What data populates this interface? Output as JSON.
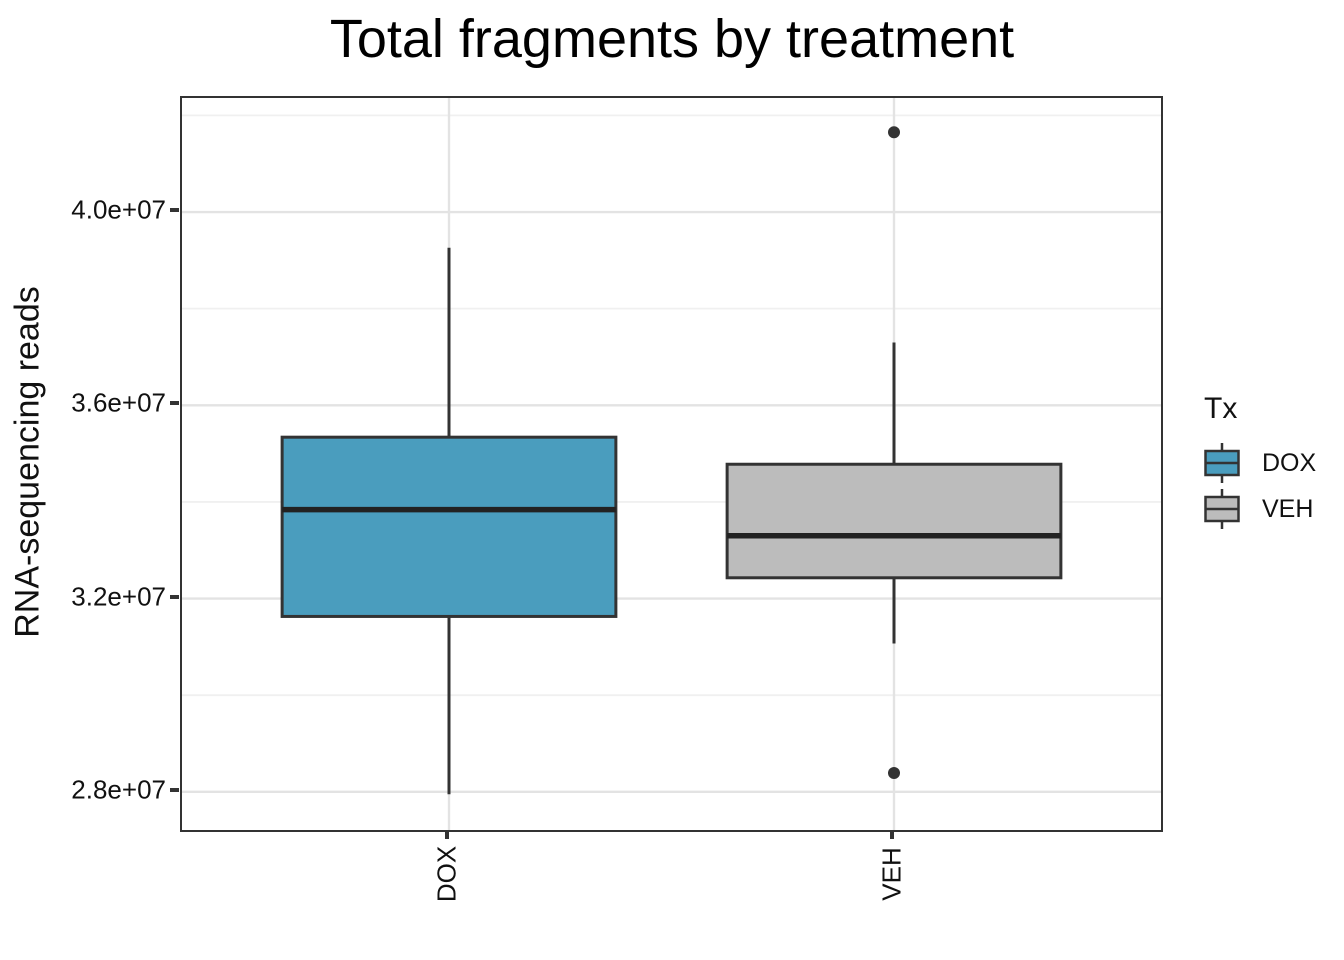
{
  "chart_data": {
    "type": "boxplot",
    "title": "Total fragments by treatment",
    "xlabel": "",
    "ylabel": "RNA-sequencing reads",
    "categories": [
      "DOX",
      "VEH"
    ],
    "series": [
      {
        "name": "DOX",
        "fill": "#4A9DBE",
        "lower_whisker": 27950000,
        "q1": 31630000,
        "median": 33840000,
        "q3": 35340000,
        "upper_whisker": 39260000,
        "outliers": []
      },
      {
        "name": "VEH",
        "fill": "#BCBCBC",
        "lower_whisker": 31070000,
        "q1": 32430000,
        "median": 33300000,
        "q3": 34780000,
        "upper_whisker": 37300000,
        "outliers": [
          41650000,
          28390000
        ]
      }
    ],
    "ylim": [
      27210000,
      42360000
    ],
    "y_major_ticks": [
      40000000,
      36000000,
      32000000,
      28000000
    ],
    "y_major_labels": [
      "4.0e+07",
      "3.6e+07",
      "3.2e+07",
      "2.8e+07"
    ],
    "y_minor_ticks": [
      42000000,
      38000000,
      34000000,
      30000000
    ],
    "grid": true,
    "legend": {
      "title": "Tx",
      "position": "right",
      "entries": [
        {
          "label": "DOX",
          "color": "#4A9DBE"
        },
        {
          "label": "VEH",
          "color": "#BCBCBC"
        }
      ]
    },
    "style": {
      "box_border_color": "#333333",
      "median_color": "#222222",
      "outlier_color": "#333333",
      "panel_border_color": "#333333",
      "major_grid_color": "#E3E3E3",
      "minor_grid_color": "#F0F0F0"
    }
  }
}
